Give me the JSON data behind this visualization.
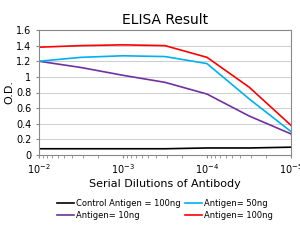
{
  "title": "ELISA Result",
  "xlabel": "Serial Dilutions of Antibody",
  "ylabel": "O.D.",
  "ylim": [
    0,
    1.6
  ],
  "yticks": [
    0,
    0.2,
    0.4,
    0.6,
    0.8,
    1.0,
    1.2,
    1.4,
    1.6
  ],
  "ytick_labels": [
    "0",
    "0.2",
    "0.4",
    "0.6",
    "0.8",
    "1",
    "1.2",
    "1.4",
    "1.6"
  ],
  "x_ticks_log": [
    -2,
    -3,
    -4,
    -5
  ],
  "x_tick_labels": [
    "10^-2",
    "10^-3",
    "10^-4",
    "10^-5"
  ],
  "lines": [
    {
      "label": "Control Antigen = 100ng",
      "color": "#000000",
      "x_log": [
        -2,
        -2.5,
        -3,
        -3.5,
        -4,
        -4.5,
        -5
      ],
      "y": [
        0.08,
        0.08,
        0.08,
        0.08,
        0.09,
        0.09,
        0.1
      ]
    },
    {
      "label": "Antigen= 10ng",
      "color": "#7030a0",
      "x_log": [
        -2,
        -2.5,
        -3,
        -3.5,
        -4,
        -4.5,
        -5
      ],
      "y": [
        1.2,
        1.12,
        1.02,
        0.93,
        0.78,
        0.5,
        0.27
      ]
    },
    {
      "label": "Antigen= 50ng",
      "color": "#00b0f0",
      "x_log": [
        -2,
        -2.5,
        -3,
        -3.5,
        -4,
        -4.5,
        -5
      ],
      "y": [
        1.2,
        1.25,
        1.27,
        1.26,
        1.17,
        0.72,
        0.3
      ]
    },
    {
      "label": "Antigen= 100ng",
      "color": "#ff0000",
      "x_log": [
        -2,
        -2.5,
        -3,
        -3.5,
        -4,
        -4.5,
        -5
      ],
      "y": [
        1.38,
        1.4,
        1.41,
        1.4,
        1.25,
        0.87,
        0.38
      ]
    }
  ],
  "legend_rows": [
    [
      {
        "label": "Control Antigen = 100ng",
        "color": "#000000"
      },
      {
        "label": "Antigen= 10ng",
        "color": "#7030a0"
      }
    ],
    [
      {
        "label": "Antigen= 50ng",
        "color": "#00b0f0"
      },
      {
        "label": "Antigen= 100ng",
        "color": "#ff0000"
      }
    ]
  ],
  "title_fontsize": 10,
  "axis_label_fontsize": 8,
  "tick_fontsize": 7,
  "legend_fontsize": 6,
  "linewidth": 1.2,
  "background_color": "#ffffff",
  "grid_color": "#bbbbbb"
}
